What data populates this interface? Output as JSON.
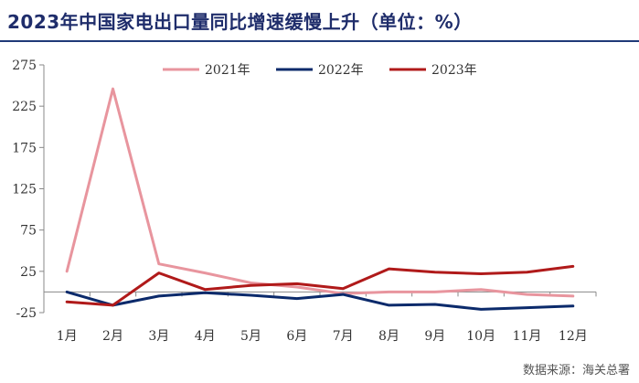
{
  "title": "2023年中国家电出口量同比增速缓慢上升（单位：%）",
  "source": "数据来源：海关总署",
  "chart_data": {
    "type": "line",
    "categories": [
      "1月",
      "2月",
      "3月",
      "4月",
      "5月",
      "6月",
      "7月",
      "8月",
      "9月",
      "10月",
      "11月",
      "12月"
    ],
    "ylim": [
      -25,
      275
    ],
    "yticks": [
      -25,
      25,
      75,
      125,
      175,
      225,
      275
    ],
    "ytick_labels": [
      "-25",
      "25",
      "75",
      "125",
      "175",
      "225",
      "275"
    ],
    "grid": false,
    "legend_position": "top",
    "series": [
      {
        "name": "2021年",
        "color": "#e8959e",
        "values": [
          25,
          246,
          34,
          23,
          11,
          6,
          -2,
          0,
          0,
          3,
          -3,
          -5
        ]
      },
      {
        "name": "2022年",
        "color": "#0b2a6b",
        "values": [
          0,
          -16,
          -5,
          -1,
          -4,
          -8,
          -3,
          -16,
          -15,
          -21,
          -19,
          -17
        ]
      },
      {
        "name": "2023年",
        "color": "#b01a1a",
        "values": [
          -12,
          -16,
          23,
          3,
          8,
          10,
          4,
          28,
          24,
          22,
          24,
          31
        ]
      }
    ]
  }
}
